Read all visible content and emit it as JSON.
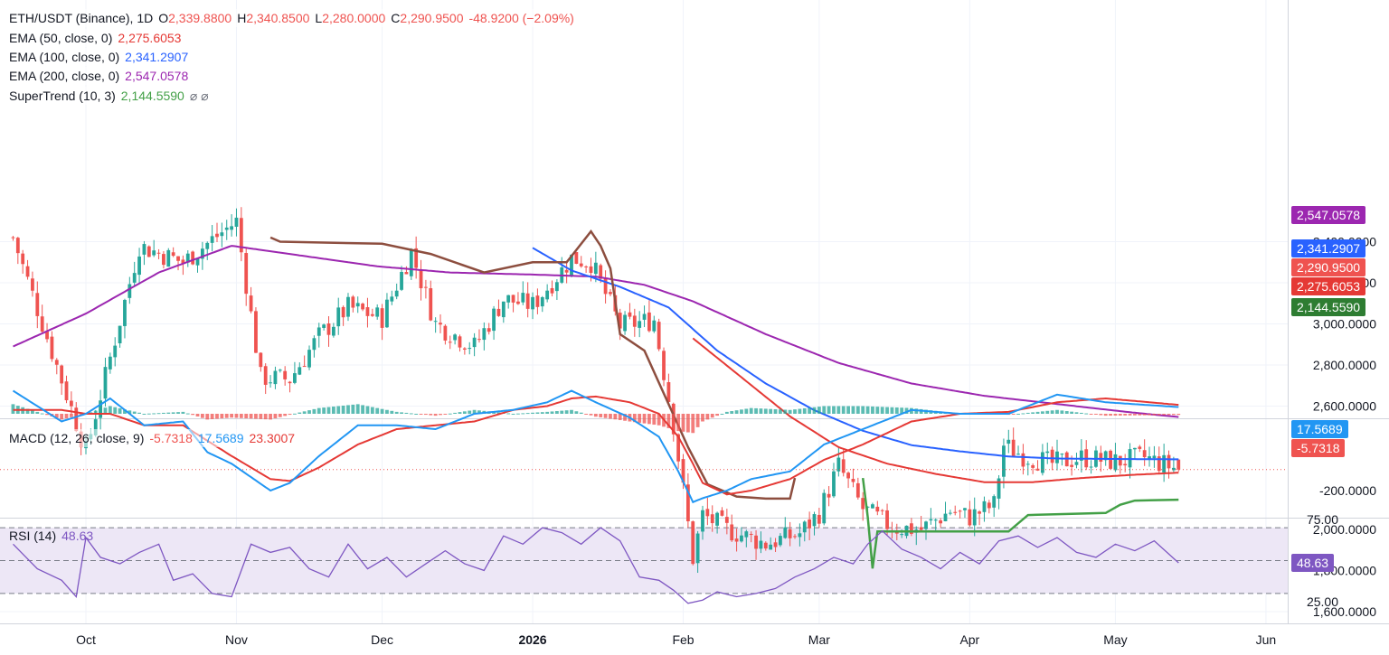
{
  "legend": {
    "symbol": "ETH/USDT (Binance), 1D",
    "o_label": "O",
    "o_val": "2,339.8800",
    "h_label": "H",
    "h_val": "2,340.8500",
    "l_label": "L",
    "l_val": "2,280.0000",
    "c_label": "C",
    "c_val": "2,290.9500",
    "change": "-48.9200 (−2.09%)",
    "ema50_label": "EMA (50, close, 0)",
    "ema50_val": "2,275.6053",
    "ema100_label": "EMA (100, close, 0)",
    "ema100_val": "2,341.2907",
    "ema200_label": "EMA (200, close, 0)",
    "ema200_val": "2,547.0578",
    "st_label": "SuperTrend (10, 3)",
    "st_val": "2,144.5590",
    "st_icons": "⌀ ⌀",
    "macd_label": "MACD (12, 26, close, 9)",
    "macd_hist": "-5.7318",
    "macd_line": "17.5689",
    "macd_signal": "23.3007",
    "rsi_label": "RSI (14)",
    "rsi_val": "48.63"
  },
  "badges": {
    "ema200": "2,547.0578",
    "ema100": "2,341.2907",
    "close": "2,290.9500",
    "ema50": "2,275.6053",
    "supertrend": "2,144.5590",
    "macd_line": "17.5689",
    "macd_hist": "-5.7318",
    "rsi": "48.63"
  },
  "colors": {
    "up": "#26a69a",
    "down": "#ef5350",
    "ema50": "#e53935",
    "ema100": "#2962ff",
    "ema200": "#9c27b0",
    "st_up": "#43a047",
    "st_down": "#8d4e3f",
    "macd": "#2196f3",
    "signal": "#e53935",
    "rsi": "#7e57c2",
    "rsi_band": "#ede7f6"
  },
  "chart_data": [
    {
      "type": "candlestick",
      "title": "ETH/USDT (Binance), 1D",
      "y_ticks": [
        "3,400.0000",
        "3,200.0000",
        "3,000.0000",
        "2,800.0000",
        "2,600.0000",
        "2,000.0000",
        "1,800.0000",
        "1,600.0000"
      ],
      "y_tick_values": [
        3400,
        3200,
        3000,
        2800,
        2600,
        2000,
        1800,
        1600
      ],
      "x_ticks": [
        "Oct",
        "Nov",
        "Dec",
        "2026",
        "Feb",
        "Mar",
        "Apr",
        "May",
        "Jun"
      ],
      "x_tick_days": [
        0,
        31,
        61,
        92,
        123,
        151,
        182,
        212,
        243
      ],
      "ylim": [
        1540,
        3460
      ],
      "xlim": [
        -15,
        262
      ],
      "last_day": 225,
      "ohlc_anchor_days": [
        -15,
        0,
        11,
        20,
        31,
        36,
        42,
        48,
        54,
        61,
        67,
        72,
        80,
        86,
        92,
        98,
        100,
        104,
        110,
        117,
        121,
        123,
        125,
        127,
        132,
        140,
        147,
        151,
        155,
        160,
        166,
        172,
        178,
        182,
        187,
        189,
        193,
        199,
        205,
        212,
        218,
        225
      ],
      "close_anchor_values": [
        3420,
        2380,
        3380,
        3300,
        3500,
        2740,
        2730,
        2940,
        3080,
        3030,
        3350,
        3000,
        2890,
        3120,
        3090,
        3260,
        3320,
        3300,
        2990,
        3020,
        2510,
        2190,
        1860,
        2070,
        2000,
        1930,
        1980,
        2080,
        2310,
        2100,
        2010,
        2000,
        2090,
        2060,
        2120,
        2410,
        2360,
        2320,
        2350,
        2330,
        2350,
        2291
      ],
      "last_candle": {
        "open": 2339.88,
        "high": 2340.85,
        "low": 2280.0,
        "close": 2290.95
      },
      "ema50_days": [
        125,
        135,
        145,
        155,
        165,
        175,
        185,
        195,
        205,
        215,
        225
      ],
      "ema50_values": [
        2930,
        2740,
        2550,
        2400,
        2320,
        2270,
        2230,
        2230,
        2250,
        2265,
        2276
      ],
      "ema100_days": [
        92,
        100,
        110,
        120,
        130,
        140,
        150,
        160,
        170,
        180,
        190,
        200,
        210,
        225
      ],
      "ema100_values": [
        3370,
        3260,
        3180,
        3080,
        2870,
        2710,
        2580,
        2480,
        2410,
        2380,
        2355,
        2345,
        2343,
        2341
      ],
      "ema200_days": [
        -15,
        0,
        15,
        30,
        45,
        60,
        75,
        92,
        105,
        115,
        125,
        140,
        155,
        170,
        185,
        200,
        215,
        225
      ],
      "ema200_values": [
        2890,
        3050,
        3250,
        3380,
        3330,
        3280,
        3250,
        3240,
        3230,
        3190,
        3110,
        2950,
        2810,
        2710,
        2650,
        2610,
        2570,
        2547
      ],
      "supertrend_days": [
        38,
        40,
        61,
        71,
        82,
        92,
        99,
        104,
        106,
        108,
        110,
        115,
        124,
        128,
        134,
        140,
        145,
        146,
        160,
        161,
        162,
        163,
        175,
        190,
        194,
        210,
        213,
        216,
        225
      ],
      "supertrend_values": [
        3420,
        3400,
        3390,
        3340,
        3250,
        3300,
        3300,
        3450,
        3380,
        3270,
        2950,
        2870,
        2400,
        2220,
        2160,
        2150,
        2150,
        2250,
        2250,
        2060,
        1810,
        1990,
        1990,
        1990,
        2070,
        2080,
        2120,
        2140,
        2144.559
      ],
      "supertrend_dir": [
        -1,
        -1,
        -1,
        -1,
        -1,
        -1,
        -1,
        -1,
        -1,
        -1,
        -1,
        -1,
        -1,
        -1,
        -1,
        -1,
        -1,
        -1,
        1,
        1,
        1,
        1,
        1,
        1,
        1,
        1,
        1,
        1,
        1
      ],
      "last_close_line": 2290.95
    },
    {
      "type": "macd",
      "title": "MACD (12, 26, close, 9)",
      "y_ticks": [
        "-200.0000"
      ],
      "y_tick_values": [
        -200
      ],
      "ylim": [
        -270,
        80
      ],
      "macd_days": [
        -15,
        -5,
        0,
        5,
        12,
        20,
        25,
        30,
        38,
        42,
        48,
        56,
        64,
        72,
        80,
        88,
        95,
        100,
        105,
        112,
        118,
        122,
        125,
        127,
        132,
        137,
        145,
        152,
        160,
        170,
        180,
        190,
        200,
        210,
        225
      ],
      "macd_values": [
        60,
        -20,
        0,
        40,
        -30,
        -20,
        -100,
        -130,
        -200,
        -180,
        -110,
        -30,
        -30,
        -40,
        0,
        10,
        30,
        60,
        30,
        -10,
        -60,
        -150,
        -230,
        -220,
        -200,
        -170,
        -150,
        -80,
        -40,
        10,
        0,
        0,
        50,
        30,
        17.5689
      ],
      "signal_values": [
        10,
        10,
        0,
        0,
        -30,
        -30,
        -70,
        -110,
        -170,
        -175,
        -140,
        -80,
        -40,
        -30,
        -20,
        10,
        20,
        40,
        45,
        30,
        0,
        -60,
        -130,
        -180,
        -210,
        -200,
        -170,
        -120,
        -80,
        -20,
        0,
        5,
        30,
        40,
        23.3007
      ],
      "histogram_last": -5.7318
    },
    {
      "type": "line",
      "title": "RSI (14)",
      "y_ticks": [
        "75.00",
        "25.00"
      ],
      "y_tick_values": [
        75,
        25
      ],
      "ylim": [
        16,
        79
      ],
      "bands": [
        70,
        50,
        30
      ],
      "rsi_days": [
        -15,
        -10,
        -5,
        -2,
        0,
        3,
        7,
        11,
        15,
        18,
        22,
        26,
        30,
        34,
        38,
        42,
        46,
        50,
        54,
        58,
        62,
        66,
        70,
        74,
        78,
        82,
        86,
        90,
        94,
        98,
        102,
        106,
        110,
        114,
        118,
        121,
        124,
        127,
        130,
        134,
        138,
        142,
        146,
        150,
        154,
        158,
        161,
        164,
        168,
        172,
        176,
        180,
        184,
        188,
        192,
        196,
        200,
        204,
        208,
        212,
        216,
        220,
        225
      ],
      "rsi_values": [
        60,
        45,
        38,
        28,
        64,
        52,
        48,
        55,
        60,
        38,
        42,
        30,
        28,
        60,
        55,
        58,
        45,
        40,
        60,
        45,
        52,
        40,
        48,
        56,
        48,
        44,
        65,
        60,
        70,
        67,
        60,
        70,
        62,
        40,
        38,
        32,
        24,
        26,
        31,
        28,
        30,
        33,
        40,
        45,
        52,
        48,
        60,
        68,
        57,
        52,
        45,
        55,
        48,
        62,
        65,
        58,
        64,
        55,
        52,
        60,
        56,
        62,
        48.63
      ]
    }
  ]
}
